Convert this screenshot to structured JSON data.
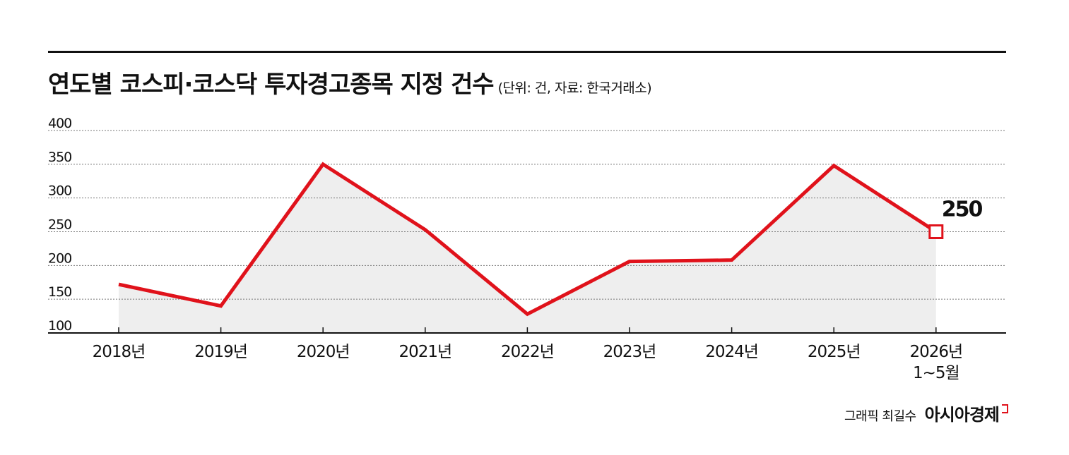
{
  "title": "연도별 코스피·코스닥 투자경고종목 지정 건수",
  "subtitle": "(단위: 건, 자료: 한국거래소)",
  "credit": {
    "text": "그래픽 최길수",
    "brand": "아시아경제"
  },
  "colors": {
    "line": "#e0121b",
    "area": "#eeeeee",
    "grid": "#777777",
    "axis": "#111111"
  },
  "chart_data": {
    "type": "line",
    "categories": [
      "2018년",
      "2019년",
      "2020년",
      "2021년",
      "2022년",
      "2023년",
      "2024년",
      "2025년",
      "2026년\n1~5월"
    ],
    "series": [
      {
        "values": [
          172,
          140,
          350,
          253,
          128,
          206,
          208,
          348,
          250
        ]
      }
    ],
    "ylim": [
      100,
      400
    ],
    "yticks": [
      100,
      150,
      200,
      250,
      300,
      350,
      400
    ],
    "grid": true,
    "fill_area": true,
    "annotations": [
      {
        "category_index": 8,
        "text": "250"
      }
    ]
  }
}
